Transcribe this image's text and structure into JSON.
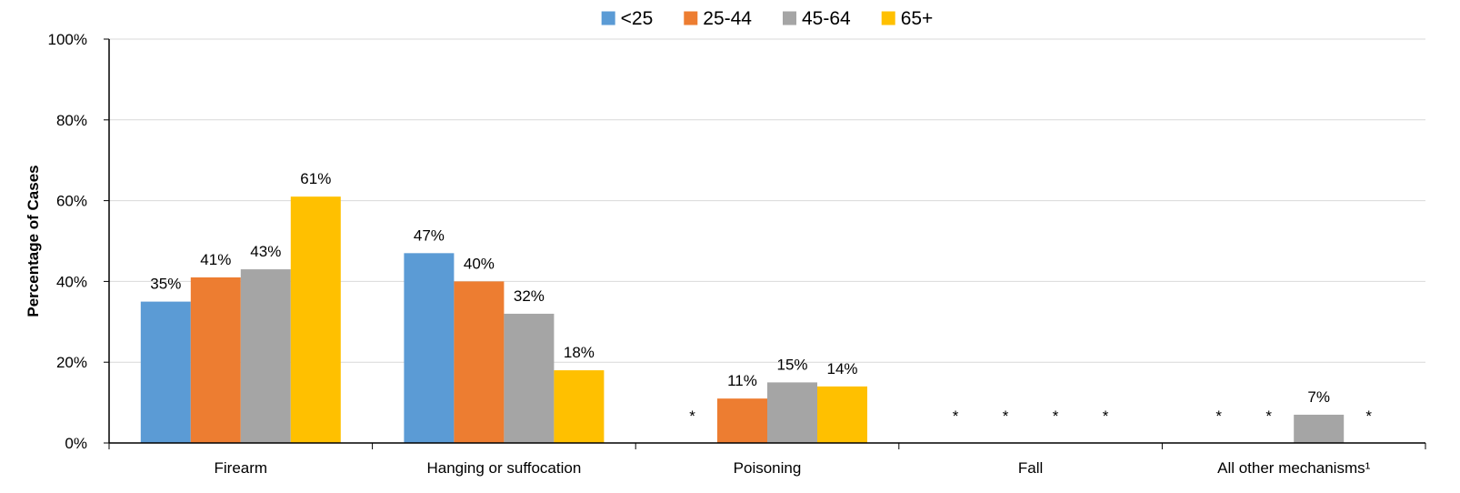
{
  "chart_data": {
    "type": "bar",
    "title": "",
    "xlabel": "",
    "ylabel": "Percentage of Cases",
    "ylim": [
      0,
      100
    ],
    "yticks": [
      "0%",
      "20%",
      "40%",
      "60%",
      "80%",
      "100%"
    ],
    "ytick_values": [
      0,
      20,
      40,
      60,
      80,
      100
    ],
    "grid": true,
    "legend_position": "top-center",
    "categories": [
      "Firearm",
      "Hanging or suffocation",
      "Poisoning",
      "Fall",
      "All other mechanisms¹"
    ],
    "suppressed_marker": "*",
    "series": [
      {
        "name": "<25",
        "color": "#5B9BD5",
        "values": [
          35,
          47,
          null,
          null,
          null
        ],
        "labels": [
          "35%",
          "47%",
          "*",
          "*",
          "*"
        ]
      },
      {
        "name": "25-44",
        "color": "#ED7D31",
        "values": [
          41,
          40,
          11,
          null,
          null
        ],
        "labels": [
          "41%",
          "40%",
          "11%",
          "*",
          "*"
        ]
      },
      {
        "name": "45-64",
        "color": "#A5A5A5",
        "values": [
          43,
          32,
          15,
          null,
          7
        ],
        "labels": [
          "43%",
          "32%",
          "15%",
          "*",
          "7%"
        ]
      },
      {
        "name": "65+",
        "color": "#FFC000",
        "values": [
          61,
          18,
          14,
          null,
          null
        ],
        "labels": [
          "61%",
          "18%",
          "14%",
          "*",
          "*"
        ]
      }
    ]
  }
}
